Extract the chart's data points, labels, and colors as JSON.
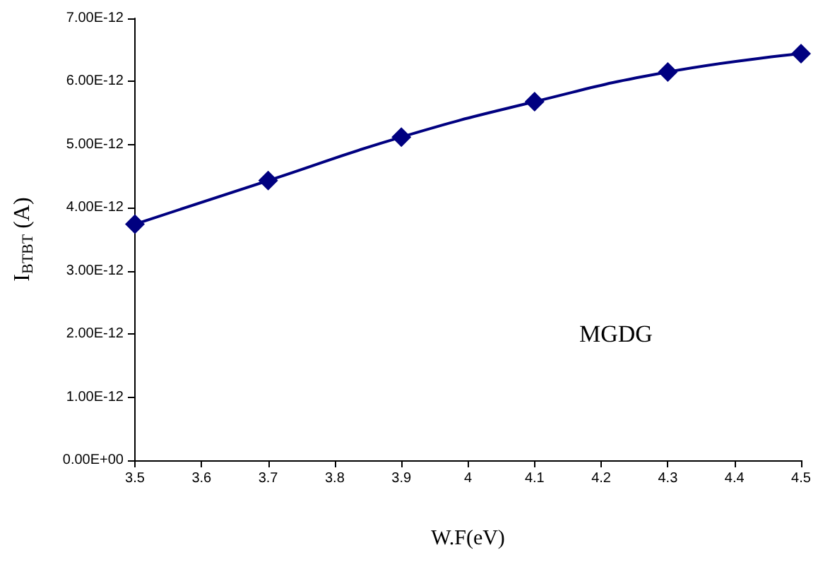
{
  "chart_data": {
    "type": "line",
    "xlabel": "W.F(eV)",
    "ylabel": "I$_{BTBT}$ (A)",
    "annotations": [
      "MGDG"
    ],
    "x": [
      3.5,
      3.7,
      3.9,
      4.1,
      4.3,
      4.5
    ],
    "series": [
      {
        "color": "#000080",
        "values": [
          3.74e-12,
          4.43e-12,
          5.12e-12,
          5.68e-12,
          6.15e-12,
          6.44e-12
        ]
      }
    ],
    "xlim": [
      3.5,
      4.5
    ],
    "xticks": [
      3.5,
      3.6,
      3.7,
      3.8,
      3.9,
      4,
      4.1,
      4.2,
      4.3,
      4.4,
      4.5
    ],
    "ylim": [
      0,
      7e-12
    ],
    "yticks": [
      {
        "value": 0,
        "label": "0.00E+00"
      },
      {
        "value": 1e-12,
        "label": "1.00E-12"
      },
      {
        "value": 2e-12,
        "label": "2.00E-12"
      },
      {
        "value": 3e-12,
        "label": "3.00E-12"
      },
      {
        "value": 4e-12,
        "label": "4.00E-12"
      },
      {
        "value": 5e-12,
        "label": "5.00E-12"
      },
      {
        "value": 6e-12,
        "label": "6.00E-12"
      },
      {
        "value": 7e-12,
        "label": "7.00E-12"
      }
    ],
    "grid": false,
    "marker": "diamond",
    "line_style": "solid"
  }
}
